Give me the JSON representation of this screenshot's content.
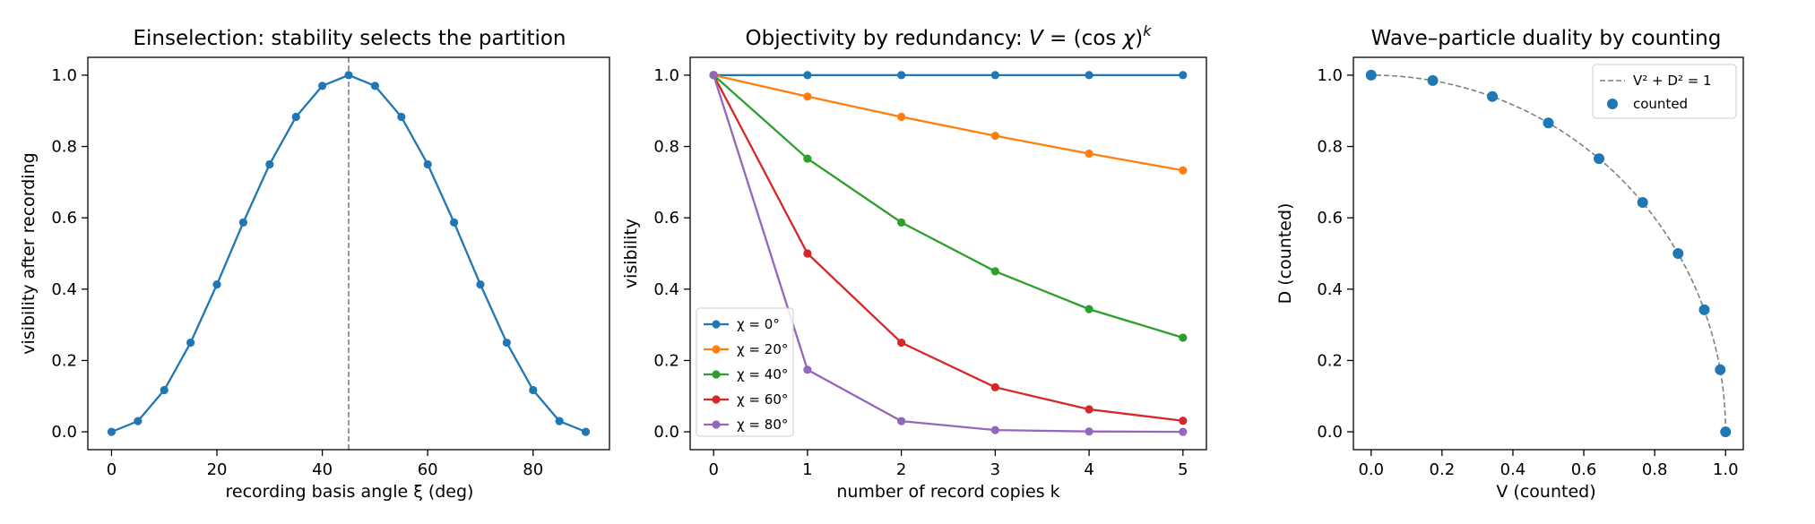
{
  "chart_data": [
    {
      "type": "line",
      "title": "Einselection: stability selects the partition",
      "xlabel": "recording basis angle ξ (deg)",
      "ylabel": "visibility after recording",
      "xlim": [
        -4.5,
        94.5
      ],
      "ylim": [
        -0.05,
        1.05
      ],
      "xticks": [
        0,
        20,
        40,
        60,
        80
      ],
      "yticks": [
        0.0,
        0.2,
        0.4,
        0.6,
        0.8,
        1.0
      ],
      "grid": false,
      "vline": {
        "x": 45,
        "style": "dashed",
        "color": "#808080"
      },
      "series": [
        {
          "color": "#1f77b4",
          "x": [
            0,
            5,
            10,
            15,
            20,
            25,
            30,
            35,
            40,
            45,
            50,
            55,
            60,
            65,
            70,
            75,
            80,
            85,
            90
          ],
          "y": [
            0.0,
            0.03,
            0.117,
            0.25,
            0.413,
            0.587,
            0.75,
            0.883,
            0.97,
            1.0,
            0.97,
            0.883,
            0.75,
            0.587,
            0.413,
            0.25,
            0.117,
            0.03,
            0.0
          ]
        }
      ]
    },
    {
      "type": "line",
      "title_prefix": "Objectivity by redundancy: ",
      "title_math": {
        "v": "V",
        "eq": " = (cos ",
        "chi": "χ",
        "close": ")",
        "exp": "k"
      },
      "xlabel": "number of record copies k",
      "ylabel": "visibility",
      "xlim": [
        -0.25,
        5.25
      ],
      "ylim": [
        -0.05,
        1.05
      ],
      "xticks": [
        0,
        1,
        2,
        3,
        4,
        5
      ],
      "yticks": [
        0.0,
        0.2,
        0.4,
        0.6,
        0.8,
        1.0
      ],
      "grid": false,
      "legend": "lower-left",
      "series": [
        {
          "name": "χ = 0°",
          "color": "#1f77b4",
          "x": [
            0,
            1,
            2,
            3,
            4,
            5
          ],
          "y": [
            1.0,
            1.0,
            1.0,
            1.0,
            1.0,
            1.0
          ]
        },
        {
          "name": "χ = 20°",
          "color": "#ff7f0e",
          "x": [
            0,
            1,
            2,
            3,
            4,
            5
          ],
          "y": [
            1.0,
            0.94,
            0.883,
            0.83,
            0.78,
            0.733
          ]
        },
        {
          "name": "χ = 40°",
          "color": "#2ca02c",
          "x": [
            0,
            1,
            2,
            3,
            4,
            5
          ],
          "y": [
            1.0,
            0.766,
            0.587,
            0.45,
            0.344,
            0.264
          ]
        },
        {
          "name": "χ = 60°",
          "color": "#d62728",
          "x": [
            0,
            1,
            2,
            3,
            4,
            5
          ],
          "y": [
            1.0,
            0.5,
            0.25,
            0.125,
            0.063,
            0.031
          ]
        },
        {
          "name": "χ = 80°",
          "color": "#9467bd",
          "x": [
            0,
            1,
            2,
            3,
            4,
            5
          ],
          "y": [
            1.0,
            0.174,
            0.03,
            0.005,
            0.001,
            0.0
          ]
        }
      ]
    },
    {
      "type": "scatter",
      "title": "Wave–particle duality by counting",
      "xlabel": "V (counted)",
      "ylabel": "D (counted)",
      "xlim": [
        -0.05,
        1.05
      ],
      "ylim": [
        -0.05,
        1.05
      ],
      "xticks": [
        0.0,
        0.2,
        0.4,
        0.6,
        0.8,
        1.0
      ],
      "yticks": [
        0.0,
        0.2,
        0.4,
        0.6,
        0.8,
        1.0
      ],
      "grid": false,
      "legend": "top-right",
      "curve": {
        "name": "V² + D² = 1",
        "color": "#808080",
        "style": "dashed"
      },
      "series": [
        {
          "name": "counted",
          "color": "#1f77b4",
          "x": [
            0.0,
            0.174,
            0.342,
            0.5,
            0.643,
            0.766,
            0.866,
            0.94,
            0.985,
            1.0
          ],
          "y": [
            1.0,
            0.985,
            0.94,
            0.866,
            0.766,
            0.643,
            0.5,
            0.342,
            0.174,
            0.0
          ]
        }
      ]
    }
  ]
}
